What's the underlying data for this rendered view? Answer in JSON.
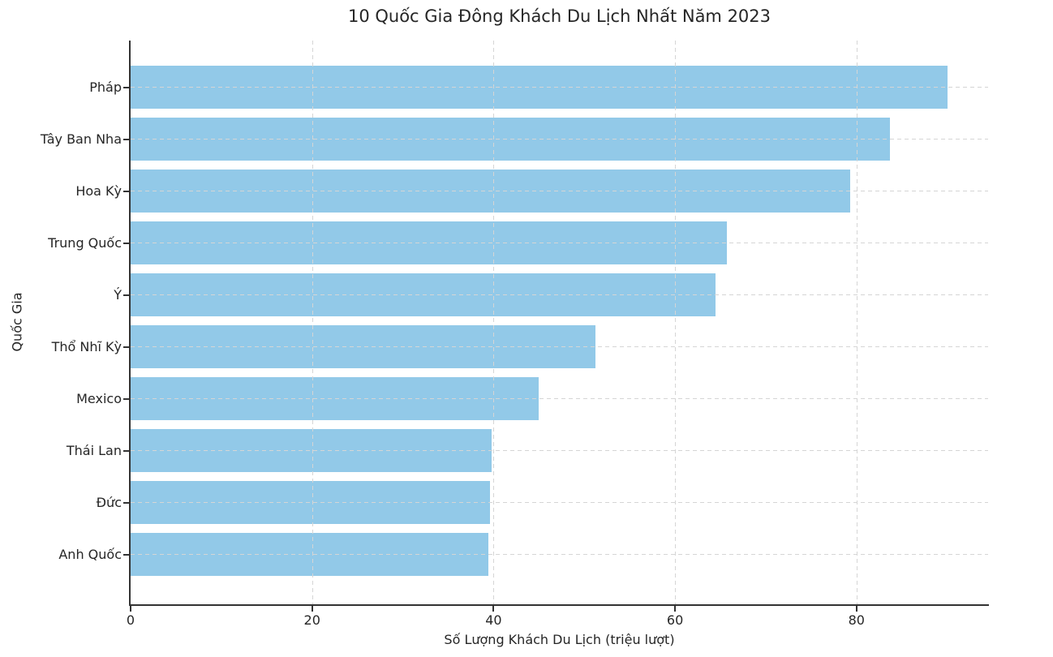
{
  "chart_data": {
    "type": "bar",
    "orientation": "horizontal",
    "title": "10 Quốc Gia Đông Khách Du Lịch Nhất Năm 2023",
    "xlabel": "Số Lượng Khách Du Lịch (triệu lượt)",
    "ylabel": "Quốc Gia",
    "categories": [
      "Pháp",
      "Tây Ban Nha",
      "Hoa Kỳ",
      "Trung Quốc",
      "Ý",
      "Thổ Nhĩ Kỳ",
      "Mexico",
      "Thái Lan",
      "Đức",
      "Anh Quốc"
    ],
    "values": [
      90.0,
      83.7,
      79.3,
      65.7,
      64.5,
      51.2,
      45.0,
      39.8,
      39.6,
      39.4
    ],
    "x_ticks": [
      0,
      20,
      40,
      60,
      80
    ],
    "xlim": [
      0,
      94.5
    ],
    "grid": "dashed vertical and horizontal gridlines drawn over bars",
    "legend": "none",
    "colors": {
      "bar": "#92C9E8",
      "grid": "#d5d5d5",
      "spine": "#333333",
      "text": "#262626",
      "background": "#ffffff"
    }
  }
}
